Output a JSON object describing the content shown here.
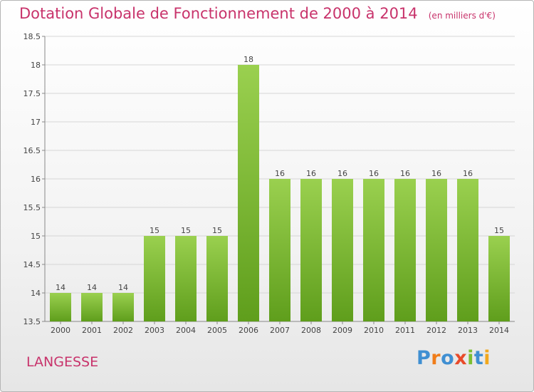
{
  "title": "Dotation Globale de Fonctionnement de 2000 à 2014",
  "unit": "(en milliers d'€)",
  "commune": "LANGESSE",
  "logo": {
    "letters": [
      "P",
      "r",
      "o",
      "x",
      "i",
      "t",
      "i"
    ],
    "colors": [
      "#3f8fd2",
      "#f07d1a",
      "#3f8fd2",
      "#e84a2a",
      "#7cbf32",
      "#3f8fd2",
      "#f2a81d"
    ]
  },
  "colors": {
    "bar_top": "#9ad04f",
    "bar_bottom": "#5f9e1c",
    "grid": "#d6d6d6",
    "axis": "#888888"
  },
  "chart_data": {
    "type": "bar",
    "categories": [
      "2000",
      "2001",
      "2002",
      "2003",
      "2004",
      "2005",
      "2006",
      "2007",
      "2008",
      "2009",
      "2010",
      "2011",
      "2012",
      "2013",
      "2014"
    ],
    "values": [
      14,
      14,
      14,
      15,
      15,
      15,
      18,
      16,
      16,
      16,
      16,
      16,
      16,
      16,
      15
    ],
    "data_labels": [
      "14",
      "14",
      "14",
      "15",
      "15",
      "15",
      "18",
      "16",
      "16",
      "16",
      "16",
      "16",
      "16",
      "16",
      "15"
    ],
    "yticks": [
      "13.5",
      "14",
      "14.5",
      "15",
      "15.5",
      "16",
      "16.5",
      "17",
      "17.5",
      "18",
      "18.5"
    ],
    "ylim": [
      13.5,
      18.5
    ],
    "grid": true,
    "legend": "none"
  }
}
